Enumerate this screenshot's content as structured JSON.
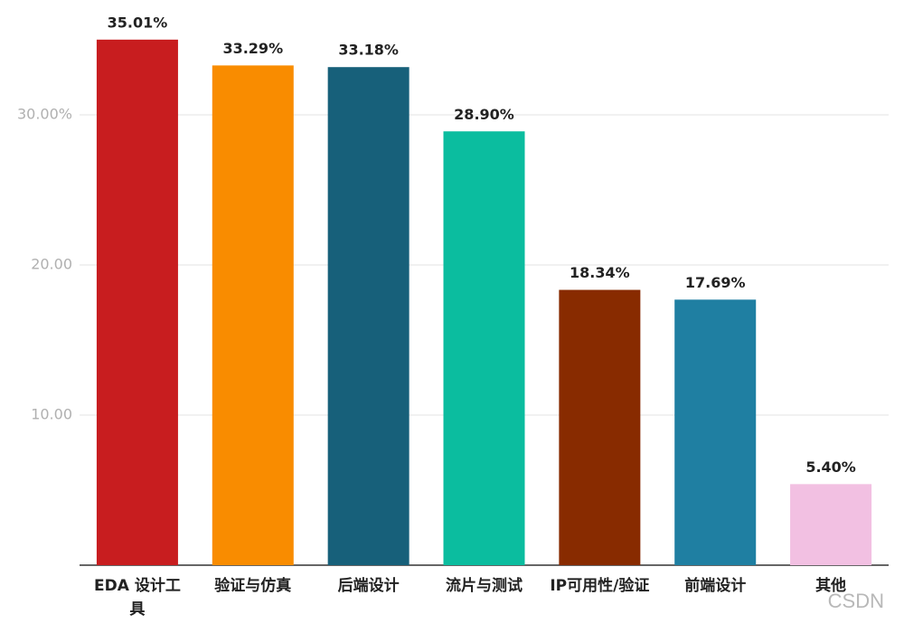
{
  "chart_data": {
    "type": "bar",
    "categories": [
      "EDA 设计工具",
      "验证与仿真",
      "后端设计",
      "流片与测试",
      "IP可用性/验证",
      "前端设计",
      "其他"
    ],
    "values": [
      35.01,
      33.29,
      33.18,
      28.9,
      18.34,
      17.69,
      5.4
    ],
    "value_labels": [
      "35.01%",
      "33.29%",
      "33.18%",
      "28.90%",
      "18.34%",
      "17.69%",
      "5.40%"
    ],
    "colors": [
      "#c81d1f",
      "#f98c00",
      "#17607a",
      "#0bbd9f",
      "#882b00",
      "#1f7fa2",
      "#f2c0e2"
    ],
    "ylim": [
      0,
      37.65
    ],
    "yticks": [
      {
        "value": 10,
        "label": "10.00"
      },
      {
        "value": 20,
        "label": "20.00"
      },
      {
        "value": 30,
        "label": "30.00%"
      }
    ],
    "grid": true
  },
  "watermark": "CSDN"
}
